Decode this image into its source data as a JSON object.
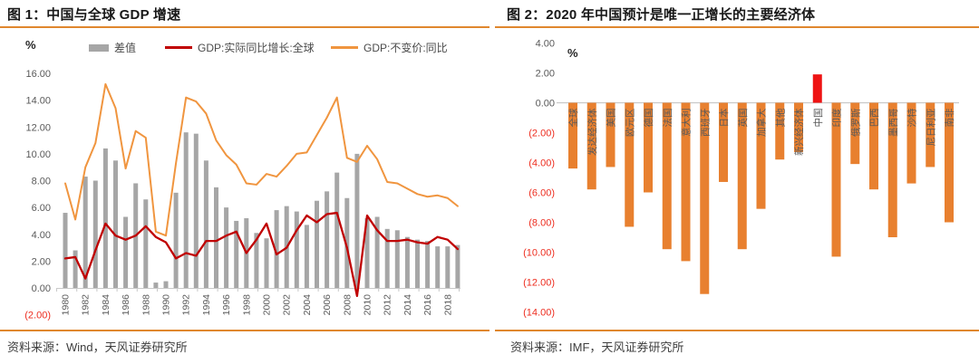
{
  "colors": {
    "accent_rule": "#E0872E",
    "bar_gray": "#A6A6A6",
    "line_red": "#C00000",
    "line_orange": "#F0953F",
    "bar_orange": "#E8802F",
    "bar_highlight_red": "#EE1313",
    "negative_label_red": "#ED2D1F",
    "axis_text": "#595959",
    "axis_line": "#C9C9C9"
  },
  "figure1": {
    "title": "图 1：中国与全球 GDP 增速",
    "unit_label": "%",
    "source": "资料来源：Wind，天风证券研究所"
  },
  "figure2": {
    "title": "图 2：2020 年中国预计是唯一正增长的主要经济体",
    "unit_label": "%",
    "source": "资料来源：IMF，天风证券研究所"
  },
  "chart_data": [
    {
      "type": "bar",
      "title": "图 1：中国与全球 GDP 增速",
      "unit": "%",
      "xlabel": "",
      "ylabel": "%",
      "ylim": [
        -2,
        16
      ],
      "ytick_step": 2,
      "grid": false,
      "legend_position": "top",
      "source": "资料来源：Wind，天风证券研究所",
      "x": [
        1980,
        1981,
        1982,
        1983,
        1984,
        1985,
        1986,
        1987,
        1988,
        1989,
        1990,
        1991,
        1992,
        1993,
        1994,
        1995,
        1996,
        1997,
        1998,
        1999,
        2000,
        2001,
        2002,
        2003,
        2004,
        2005,
        2006,
        2007,
        2008,
        2009,
        2010,
        2011,
        2012,
        2013,
        2014,
        2015,
        2016,
        2017,
        2018,
        2019
      ],
      "xtick_labels": [
        1980,
        1982,
        1984,
        1986,
        1988,
        1990,
        1992,
        1994,
        1996,
        1998,
        2000,
        2002,
        2004,
        2006,
        2008,
        2010,
        2012,
        2014,
        2016,
        2018
      ],
      "series": [
        {
          "name": "差值",
          "kind": "bar",
          "color": "#A6A6A6",
          "values": [
            5.6,
            2.8,
            8.3,
            8.0,
            10.4,
            9.5,
            5.3,
            7.8,
            6.6,
            0.4,
            0.5,
            7.1,
            11.6,
            11.5,
            9.5,
            7.5,
            6.0,
            5.0,
            5.2,
            4.1,
            3.7,
            5.8,
            6.1,
            5.7,
            4.7,
            6.5,
            7.2,
            8.6,
            6.7,
            10.0,
            5.2,
            5.3,
            4.4,
            4.3,
            3.8,
            3.6,
            3.5,
            3.1,
            3.1,
            3.2
          ]
        },
        {
          "name": "GDP:实际同比增长:全球",
          "kind": "line",
          "color": "#C00000",
          "values": [
            2.2,
            2.3,
            0.7,
            2.8,
            4.8,
            3.9,
            3.6,
            3.9,
            4.6,
            3.8,
            3.4,
            2.2,
            2.6,
            2.4,
            3.5,
            3.5,
            3.9,
            4.2,
            2.6,
            3.6,
            4.8,
            2.5,
            3.0,
            4.3,
            5.4,
            4.9,
            5.5,
            5.6,
            3.0,
            -0.6,
            5.4,
            4.3,
            3.5,
            3.5,
            3.6,
            3.4,
            3.3,
            3.8,
            3.6,
            2.9
          ]
        },
        {
          "name": "GDP:不变价:同比",
          "kind": "line",
          "color": "#F0953F",
          "values": [
            7.8,
            5.1,
            9.0,
            10.8,
            15.2,
            13.4,
            8.9,
            11.7,
            11.2,
            4.2,
            3.9,
            9.3,
            14.2,
            13.9,
            13.0,
            11.0,
            9.9,
            9.2,
            7.8,
            7.7,
            8.5,
            8.3,
            9.1,
            10.0,
            10.1,
            11.4,
            12.7,
            14.2,
            9.7,
            9.4,
            10.6,
            9.6,
            7.9,
            7.8,
            7.4,
            7.0,
            6.8,
            6.9,
            6.7,
            6.1
          ]
        }
      ]
    },
    {
      "type": "bar",
      "title": "图 2：2020 年中国预计是唯一正增长的主要经济体",
      "unit": "%",
      "xlabel": "",
      "ylabel": "%",
      "ylim": [
        -14,
        4
      ],
      "ytick_step": 2,
      "grid": false,
      "source": "资料来源：IMF，天风证券研究所",
      "categories": [
        "全球",
        "发达经济体",
        "美国",
        "欧元区",
        "德国",
        "法国",
        "意大利",
        "西班牙",
        "日本",
        "英国",
        "加拿大",
        "其他",
        "新兴经济体",
        "中国",
        "印度",
        "俄罗斯",
        "巴西",
        "墨西哥",
        "沙特",
        "尼日利亚",
        "南非"
      ],
      "values": [
        -4.4,
        -5.8,
        -4.3,
        -8.3,
        -6.0,
        -9.8,
        -10.6,
        -12.8,
        -5.3,
        -9.8,
        -7.1,
        -3.8,
        -3.3,
        1.9,
        -10.3,
        -4.1,
        -5.8,
        -9.0,
        -5.4,
        -4.3,
        -8.0
      ],
      "bar_color": "#E8802F",
      "highlight_category": "中国",
      "highlight_color": "#EE1313"
    }
  ]
}
